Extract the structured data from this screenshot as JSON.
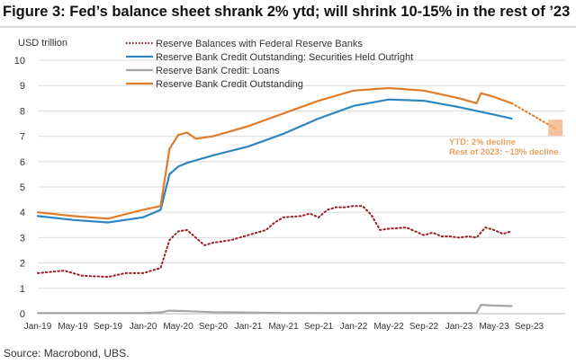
{
  "title": "Figure 3: Fed’s balance sheet shrank 2% ytd; will shrink 10-15% in the rest of ’23",
  "source": "Source: Macrobond, UBS.",
  "chart_data": {
    "type": "line",
    "ylabel": "USD trillion",
    "ylim": [
      0,
      10
    ],
    "yticks": [
      "0",
      "1",
      "2",
      "3",
      "4",
      "5",
      "6",
      "7",
      "8",
      "9",
      "10"
    ],
    "xticks": [
      "Jan-19",
      "May-19",
      "Sep-19",
      "Jan-20",
      "May-20",
      "Sep-20",
      "Jan-21",
      "May-21",
      "Sep-21",
      "Jan-22",
      "May-22",
      "Sep-22",
      "Jan-23",
      "May-23",
      "Sep-23"
    ],
    "x_unit": "months since Jan-19",
    "grid": true,
    "legend_position": "top-left",
    "annotation": [
      "YTD: 2% decline",
      "Rest of 2023: ~13% decline"
    ],
    "series": [
      {
        "name": "Reserve Balances with Federal Reserve Banks",
        "color": "#9b1c24",
        "style": "dotted",
        "x": [
          0,
          3,
          5,
          8,
          10,
          12,
          14,
          15,
          16,
          17,
          18,
          19,
          20,
          22,
          24,
          26,
          27,
          28,
          30,
          31,
          32,
          33,
          34,
          35,
          36,
          37,
          38,
          39,
          40,
          42,
          44,
          45,
          46,
          47,
          48,
          49,
          50,
          51,
          52,
          53,
          54
        ],
        "y": [
          1.6,
          1.7,
          1.5,
          1.45,
          1.6,
          1.6,
          1.8,
          2.9,
          3.25,
          3.3,
          3.0,
          2.7,
          2.8,
          2.9,
          3.1,
          3.3,
          3.6,
          3.8,
          3.85,
          3.95,
          3.8,
          4.1,
          4.2,
          4.2,
          4.25,
          4.25,
          3.9,
          3.3,
          3.35,
          3.4,
          3.1,
          3.2,
          3.05,
          3.05,
          3.0,
          3.05,
          3.0,
          3.4,
          3.3,
          3.15,
          3.25
        ]
      },
      {
        "name": "Reserve Bank Credit Outstanding: Securities Held Outright",
        "color": "#2e86c1",
        "style": "solid",
        "x": [
          0,
          4,
          8,
          12,
          14,
          15,
          16,
          17,
          18,
          20,
          24,
          28,
          32,
          36,
          40,
          44,
          48,
          52,
          54
        ],
        "y": [
          3.85,
          3.7,
          3.6,
          3.8,
          4.1,
          5.5,
          5.8,
          5.95,
          6.05,
          6.25,
          6.6,
          7.1,
          7.7,
          8.2,
          8.45,
          8.4,
          8.15,
          7.85,
          7.7
        ]
      },
      {
        "name": "Reserve Bank Credit: Loans",
        "color": "#a6a6a6",
        "style": "solid",
        "x": [
          0,
          12,
          14,
          15,
          17,
          20,
          28,
          36,
          44,
          50,
          50.5,
          52,
          54
        ],
        "y": [
          0.02,
          0.02,
          0.05,
          0.12,
          0.1,
          0.06,
          0.03,
          0.02,
          0.02,
          0.02,
          0.35,
          0.32,
          0.3
        ]
      },
      {
        "name": "Reserve Bank Credit Outstanding",
        "color": "#e07b2a",
        "style": "solid",
        "x": [
          0,
          4,
          8,
          12,
          14,
          15,
          16,
          17,
          18,
          20,
          24,
          28,
          32,
          36,
          40,
          44,
          48,
          50,
          50.5,
          52,
          54
        ],
        "y": [
          4.0,
          3.85,
          3.75,
          4.1,
          4.25,
          6.5,
          7.05,
          7.15,
          6.9,
          7.0,
          7.4,
          7.9,
          8.4,
          8.8,
          8.9,
          8.8,
          8.5,
          8.3,
          8.7,
          8.55,
          8.3
        ]
      },
      {
        "name": "Projection",
        "color": "#e07b2a",
        "style": "dotted",
        "x": [
          54,
          59
        ],
        "y": [
          8.3,
          7.3
        ]
      }
    ]
  }
}
